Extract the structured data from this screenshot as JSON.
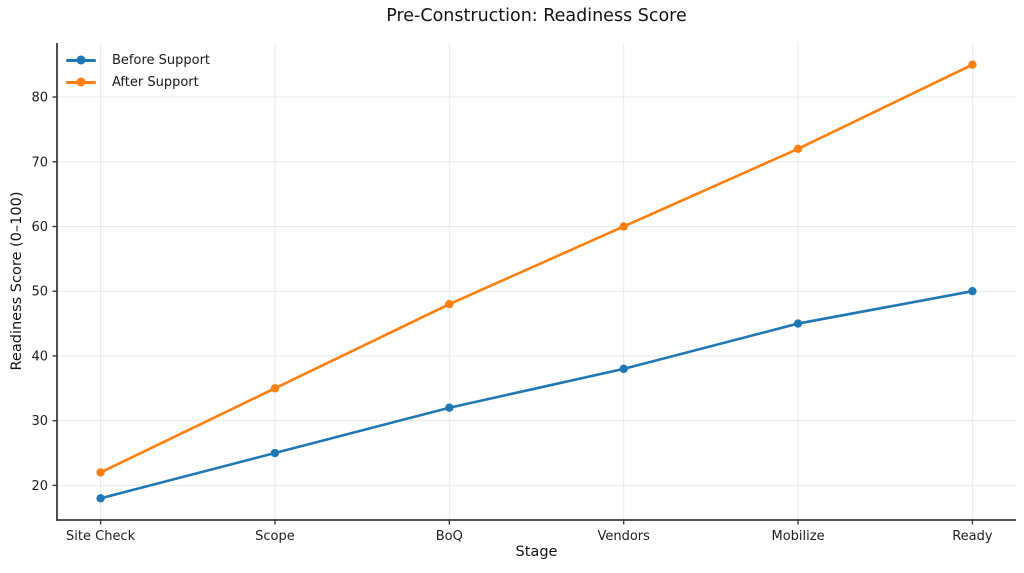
{
  "figure": {
    "title": "Pre-Construction: Readiness Score",
    "xlabel": "Stage",
    "ylabel": "Readiness Score (0–100)"
  },
  "chart_data": {
    "type": "line",
    "title": "Pre-Construction: Readiness Score",
    "xlabel": "Stage",
    "ylabel": "Readiness Score (0–100)",
    "categories": [
      "Site Check",
      "Scope",
      "BoQ",
      "Vendors",
      "Mobilize",
      "Ready"
    ],
    "series": [
      {
        "name": "Before Support",
        "color": "#1f77b4",
        "values": [
          18,
          25,
          32,
          38,
          45,
          50
        ]
      },
      {
        "name": "After Support",
        "color": "#ff7f0e",
        "values": [
          22,
          35,
          48,
          60,
          72,
          85
        ]
      }
    ],
    "yticks": [
      20,
      30,
      40,
      50,
      60,
      70,
      80
    ],
    "ylim": [
      14.65,
      88.35
    ],
    "xlim": [
      -0.25,
      5.25
    ],
    "grid": true,
    "legend_position": "upper left",
    "legend_frame": false,
    "colors": {
      "grid": "#e9e9e9",
      "spine": "#3b3b3b",
      "tick_text": "#1f1f1f",
      "title_text": "#141414"
    }
  }
}
